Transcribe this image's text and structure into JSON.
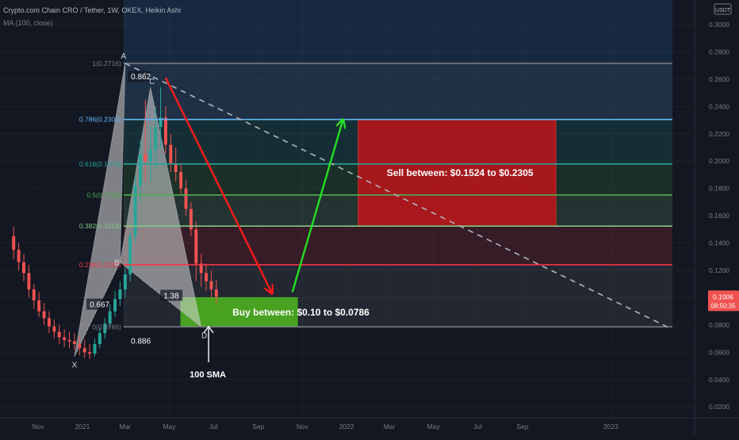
{
  "header": {
    "symbol_line": "Crypto.com Chain CRO / Tether, 1W, OKEX, Heikin Ashi",
    "indicator_line": "MA (100, close)"
  },
  "currency_badge": "USDT",
  "price_tag": {
    "price": "0.1006",
    "countdown": "08:50:35"
  },
  "colors": {
    "background": "#131722",
    "bull": "#26a69a",
    "bear": "#ef5350",
    "price_tag": "#ef5350",
    "sell_box": "#c0141a",
    "buy_box": "#4caf1e",
    "arrow_down": "#ff1a1a",
    "arrow_up": "#22e022",
    "pattern_fill": "#d8d8d8",
    "fib_1": "#787b86",
    "fib_0786": "#64b5f6",
    "fib_0618": "#26a69a",
    "fib_05": "#4caf50",
    "fib_0382": "#81c784",
    "fib_0236": "#f23645",
    "fib_0": "#787b86"
  },
  "chart_data": {
    "type": "candlestick",
    "y_axis": {
      "ticks": [
        "0.3000",
        "0.2800",
        "0.2600",
        "0.2400",
        "0.2200",
        "0.2000",
        "0.1800",
        "0.1600",
        "0.1400",
        "0.1200",
        "0.1000",
        "0.0800",
        "0.0600",
        "0.0400",
        "0.0200"
      ],
      "range": [
        0.012,
        0.318
      ]
    },
    "x_axis": {
      "ticks": [
        "Nov",
        "2021",
        "Mar",
        "May",
        "Jul",
        "Sep",
        "Nov",
        "2022",
        "Mar",
        "May",
        "Jul",
        "Sep",
        "2023"
      ],
      "range": [
        "2020-10-12",
        "2023-03-27"
      ]
    },
    "fib_levels": [
      {
        "key": "fib_1",
        "level": 1,
        "price": 0.2716,
        "label": "1(0.2716)"
      },
      {
        "key": "fib_0786",
        "level": 0.786,
        "price": 0.2305,
        "label": "0.786(0.2305)"
      },
      {
        "key": "fib_0618",
        "level": 0.618,
        "price": 0.1979,
        "label": "0.618(0.1979)"
      },
      {
        "key": "fib_05",
        "level": 0.5,
        "price": 0.1752,
        "label": "0.5(0.1752)"
      },
      {
        "key": "fib_0382",
        "level": 0.382,
        "price": 0.1524,
        "label": "0.382(0.1524)"
      },
      {
        "key": "fib_0236",
        "level": 0.236,
        "price": 0.1241,
        "label": "0.236(0.1241)"
      },
      {
        "key": "fib_0",
        "level": 0,
        "price": 0.0786,
        "label": "0(0.0786)"
      }
    ],
    "fib_extend_to": "2023-03-27",
    "harmonic_pattern": {
      "points": [
        {
          "name": "X",
          "date": "2020-12-21",
          "price": 0.057
        },
        {
          "name": "A",
          "date": "2021-03-01",
          "price": 0.2716
        },
        {
          "name": "B",
          "date": "2021-02-22",
          "price": 0.126
        },
        {
          "name": "C",
          "date": "2021-04-05",
          "price": 0.254
        },
        {
          "name": "D",
          "date": "2021-06-14",
          "price": 0.0786
        }
      ],
      "ratios": [
        {
          "text": "0.862",
          "date": "2021-03-09",
          "price": 0.2604
        },
        {
          "text": "1.38",
          "date": "2021-04-23",
          "price": 0.1
        },
        {
          "text": "0.667",
          "date": "2021-01-11",
          "price": 0.0935
        },
        {
          "text": "0.886",
          "date": "2021-03-09",
          "price": 0.067
        }
      ]
    },
    "trend_line": {
      "from": {
        "date": "2021-03-01",
        "price": 0.2716
      },
      "to": {
        "date": "2023-03-20",
        "price": 0.0786
      }
    },
    "zones": [
      {
        "name": "sell",
        "label": "Sell between: $0.1524 to $0.2305",
        "price_low": 0.1524,
        "price_high": 0.2305,
        "date_from": "2022-01-17",
        "date_to": "2022-10-17"
      },
      {
        "name": "buy",
        "label": "Buy between: $0.10 to $0.0786",
        "price_low": 0.0786,
        "price_high": 0.1,
        "date_from": "2021-05-17",
        "date_to": "2021-10-25"
      }
    ],
    "arrows": [
      {
        "name": "down",
        "from": {
          "date": "2021-04-26",
          "price": 0.261
        },
        "to": {
          "date": "2021-09-20",
          "price": 0.103
        }
      },
      {
        "name": "up",
        "from": {
          "date": "2021-10-18",
          "price": 0.104
        },
        "to": {
          "date": "2021-12-27",
          "price": 0.2305
        }
      }
    ],
    "annotation": {
      "text": "100 SMA",
      "date": "2021-06-21",
      "price": 0.08
    },
    "ohlc_weekly_start": "2020-09-28",
    "ohlc": [
      [
        0.145,
        0.152,
        0.128,
        0.135
      ],
      [
        0.135,
        0.14,
        0.12,
        0.126
      ],
      [
        0.126,
        0.132,
        0.112,
        0.118
      ],
      [
        0.118,
        0.124,
        0.1,
        0.106
      ],
      [
        0.106,
        0.11,
        0.092,
        0.098
      ],
      [
        0.098,
        0.104,
        0.086,
        0.09
      ],
      [
        0.09,
        0.096,
        0.08,
        0.085
      ],
      [
        0.085,
        0.09,
        0.074,
        0.079
      ],
      [
        0.079,
        0.084,
        0.07,
        0.075
      ],
      [
        0.075,
        0.08,
        0.066,
        0.071
      ],
      [
        0.071,
        0.077,
        0.064,
        0.069
      ],
      [
        0.069,
        0.075,
        0.063,
        0.068
      ],
      [
        0.068,
        0.074,
        0.062,
        0.066
      ],
      [
        0.066,
        0.072,
        0.058,
        0.063
      ],
      [
        0.063,
        0.069,
        0.056,
        0.06
      ],
      [
        0.06,
        0.066,
        0.055,
        0.059
      ],
      [
        0.059,
        0.07,
        0.057,
        0.066
      ],
      [
        0.066,
        0.078,
        0.063,
        0.074
      ],
      [
        0.074,
        0.085,
        0.07,
        0.081
      ],
      [
        0.081,
        0.095,
        0.078,
        0.09
      ],
      [
        0.09,
        0.105,
        0.086,
        0.099
      ],
      [
        0.099,
        0.112,
        0.094,
        0.106
      ],
      [
        0.106,
        0.122,
        0.1,
        0.117
      ],
      [
        0.117,
        0.15,
        0.112,
        0.145
      ],
      [
        0.145,
        0.19,
        0.14,
        0.182
      ],
      [
        0.182,
        0.215,
        0.17,
        0.205
      ],
      [
        0.205,
        0.245,
        0.185,
        0.2
      ],
      [
        0.2,
        0.225,
        0.185,
        0.208
      ],
      [
        0.208,
        0.24,
        0.195,
        0.225
      ],
      [
        0.225,
        0.254,
        0.21,
        0.232
      ],
      [
        0.232,
        0.24,
        0.205,
        0.212
      ],
      [
        0.212,
        0.22,
        0.192,
        0.198
      ],
      [
        0.198,
        0.21,
        0.185,
        0.192
      ],
      [
        0.192,
        0.198,
        0.176,
        0.18
      ],
      [
        0.18,
        0.186,
        0.16,
        0.165
      ],
      [
        0.165,
        0.17,
        0.145,
        0.15
      ],
      [
        0.15,
        0.156,
        0.112,
        0.125
      ],
      [
        0.125,
        0.132,
        0.108,
        0.118
      ],
      [
        0.118,
        0.125,
        0.105,
        0.112
      ],
      [
        0.112,
        0.12,
        0.1,
        0.106
      ],
      [
        0.106,
        0.113,
        0.095,
        0.1006
      ]
    ]
  }
}
